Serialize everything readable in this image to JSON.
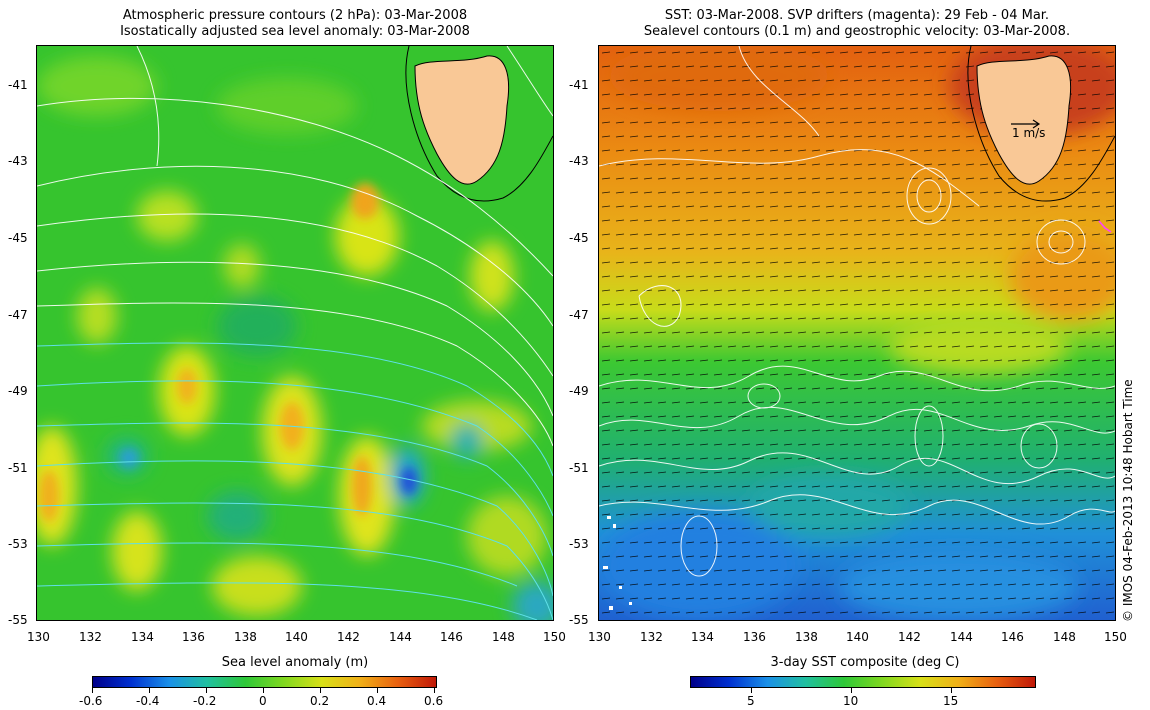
{
  "left_panel": {
    "title_line1": "Atmospheric pressure contours (2 hPa): 03-Mar-2008",
    "title_line2": "Isostatically adjusted sea level anomaly: 03-Mar-2008",
    "colorbar_title": "Sea level anomaly (m)",
    "colorbar_ticks": [
      "-0.6",
      "-0.4",
      "-0.2",
      "0",
      "0.2",
      "0.4",
      "0.6"
    ]
  },
  "right_panel": {
    "title_line1": "SST: 03-Mar-2008. SVP drifters (magenta): 29 Feb - 04 Mar.",
    "title_line2": "Sealevel contours (0.1 m) and geostrophic velocity: 03-Mar-2008.",
    "colorbar_title": "3-day SST composite (deg C)",
    "colorbar_ticks": [
      "5",
      "10",
      "15"
    ],
    "scale_arrow_label": "1 m/s"
  },
  "axes": {
    "lat_labels": [
      "-41",
      "-43",
      "-45",
      "-47",
      "-49",
      "-51",
      "-53",
      "-55"
    ],
    "lon_labels": [
      "130",
      "132",
      "134",
      "136",
      "138",
      "140",
      "142",
      "144",
      "146",
      "148",
      "150"
    ]
  },
  "credit": "© IMOS 04-Feb-2013 10:48 Hobart Time",
  "colors": {
    "land": "#f9c896",
    "sla_background": "#33cc33",
    "sst_warm": "#e88a10",
    "sst_cold": "#2a8ae0"
  }
}
